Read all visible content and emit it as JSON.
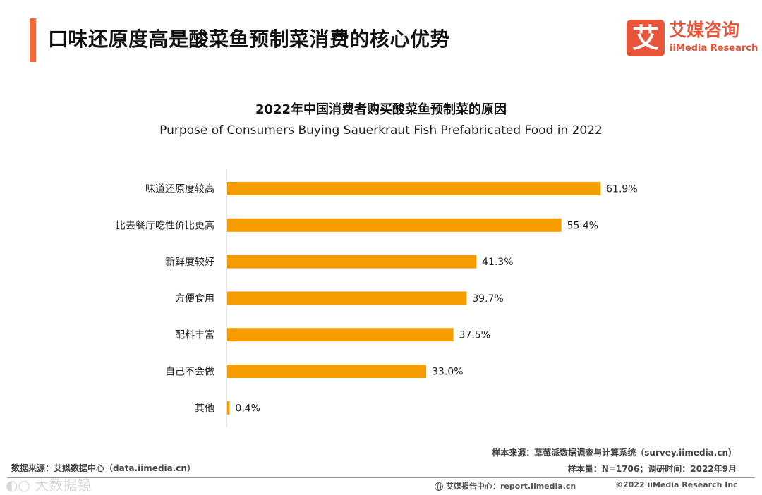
{
  "header": {
    "title": "口味还原度高是酸菜鱼预制菜消费的核心优势",
    "logo_mark": "艾",
    "logo_cn": "艾媒咨询",
    "logo_en": "iiMedia Research"
  },
  "chart_data": {
    "type": "bar",
    "orientation": "horizontal",
    "title": "2022年中国消费者购买酸菜鱼预制菜的原因",
    "subtitle": "Purpose of Consumers Buying Sauerkraut Fish Prefabricated Food  in  2022",
    "categories": [
      "味道还原度较高",
      "比去餐厅吃性价比更高",
      "新鲜度较好",
      "方便食用",
      "配料丰富",
      "自己不会做",
      "其他"
    ],
    "values": [
      61.9,
      55.4,
      41.3,
      39.7,
      37.5,
      33.0,
      0.4
    ],
    "labels": [
      "61.9%",
      "55.4%",
      "41.3%",
      "39.7%",
      "37.5%",
      "33.0%",
      "0.4%"
    ],
    "unit": "%",
    "xlim": [
      0,
      62
    ],
    "color": "#f59c00",
    "grid": false,
    "legend": "none"
  },
  "footer": {
    "data_source": "数据来源：艾媒数据中心（data.iimedia.cn）",
    "sample_source": "样本来源：草莓派数据调查与计算系统（survey.iimedia.cn）",
    "sample_info": "样本量：N=1706；调研时间：2022年9月",
    "report_center": "艾媒报告中心：report.iimedia.cn",
    "copyright": "©2022  iiMedia Research  Inc",
    "watermark": "◐○ 大数据镜"
  }
}
